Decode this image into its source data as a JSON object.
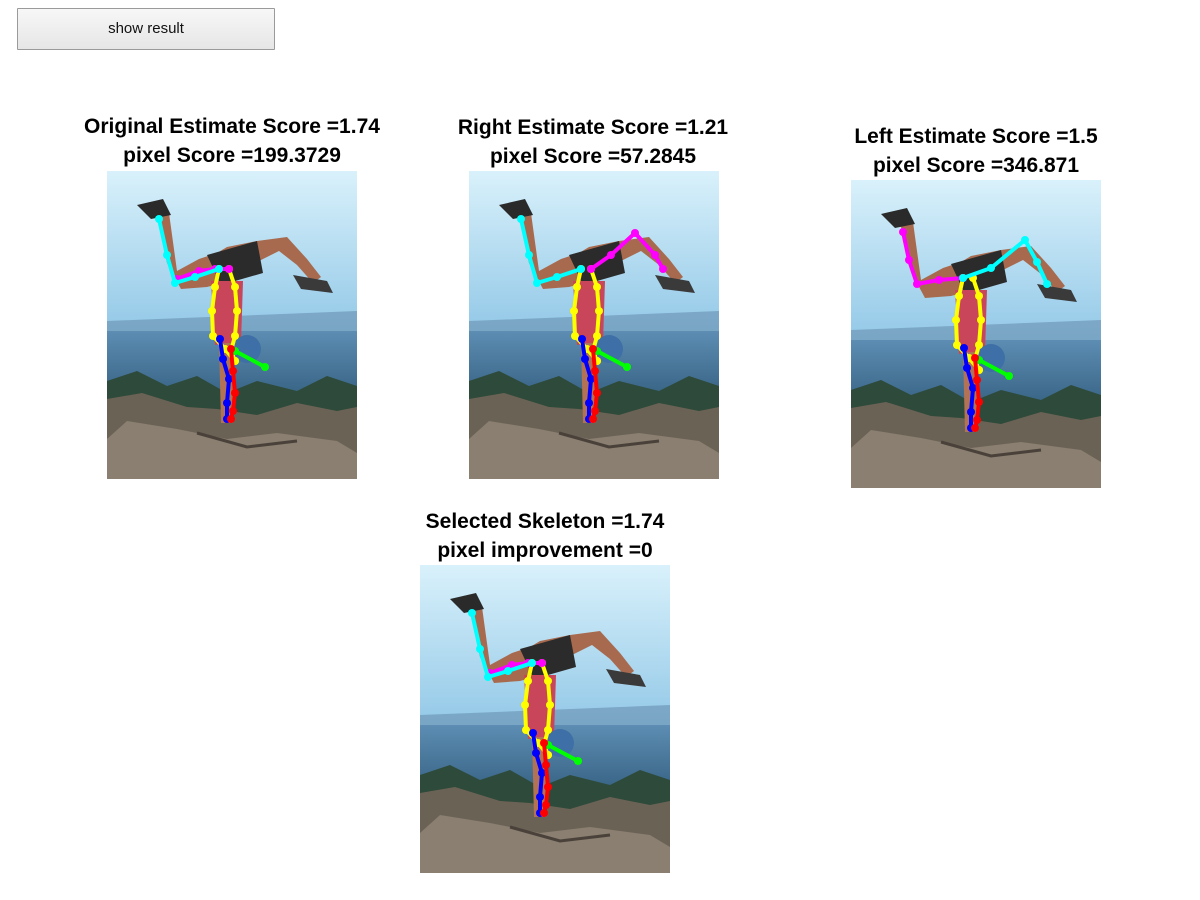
{
  "toolbar": {
    "show_result_label": "show result"
  },
  "panels": [
    {
      "id": "original",
      "title_line1": "Original Estimate Score =1.74",
      "title_line2": "pixel Score =199.3729"
    },
    {
      "id": "right",
      "title_line1": "Right Estimate Score =1.21",
      "title_line2": "pixel Score =57.2845"
    },
    {
      "id": "left",
      "title_line1": "Left Estimate Score =1.5",
      "title_line2": "pixel Score =346.871"
    },
    {
      "id": "selected",
      "title_line1": "Selected Skeleton =1.74",
      "title_line2": "pixel improvement =0"
    }
  ],
  "skeleton_colors": {
    "torso": "#ffff00",
    "right_arm": "#00ffff",
    "left_arm": "#ff00ff",
    "right_leg": "#ff0000",
    "left_leg": "#0000ff",
    "head": "#00ff00"
  }
}
